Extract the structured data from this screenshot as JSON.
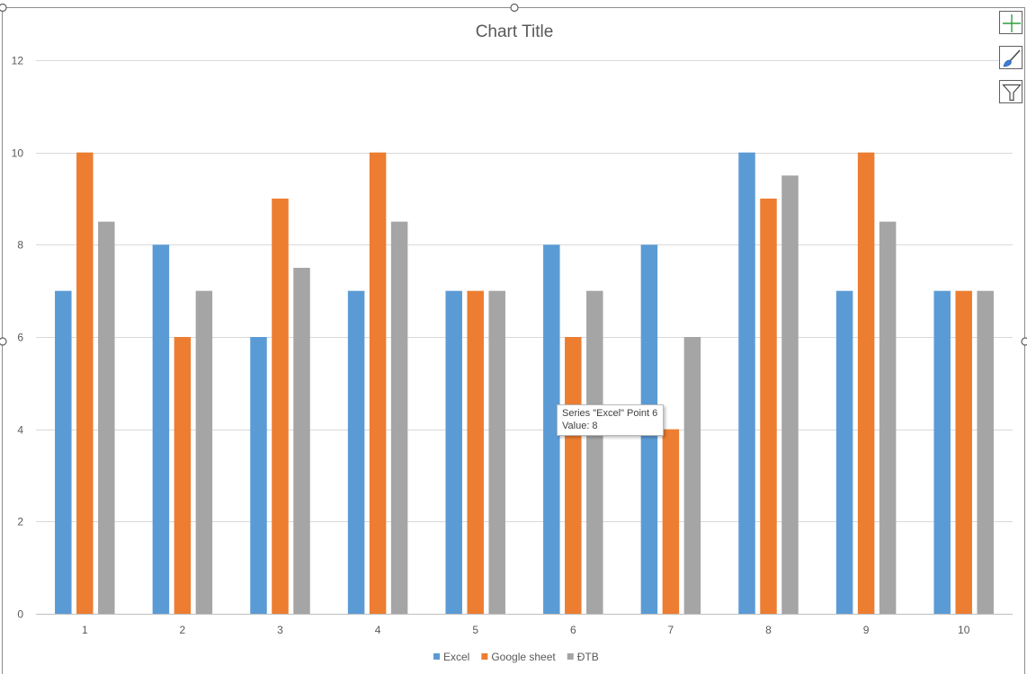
{
  "chart_data": {
    "type": "bar",
    "title": "Chart Title",
    "categories": [
      "1",
      "2",
      "3",
      "4",
      "5",
      "6",
      "7",
      "8",
      "9",
      "10"
    ],
    "series": [
      {
        "name": "Excel",
        "color": "#5b9bd5",
        "values": [
          7,
          8,
          6,
          7,
          7,
          8,
          8,
          10,
          7,
          7
        ]
      },
      {
        "name": "Google sheet",
        "color": "#ed7d31",
        "values": [
          10,
          6,
          9,
          10,
          7,
          6,
          4,
          9,
          10,
          7
        ]
      },
      {
        "name": "ĐTB",
        "color": "#a5a5a5",
        "values": [
          8.5,
          7,
          7.5,
          8.5,
          7,
          7,
          6,
          9.5,
          8.5,
          7
        ]
      }
    ],
    "ylim": [
      0,
      12
    ],
    "yticks": [
      0,
      2,
      4,
      6,
      8,
      10,
      12
    ],
    "grid": true,
    "legend": "bottom"
  },
  "tooltip": {
    "line1": "Series \"Excel\" Point 6",
    "line2": "Value: 8"
  },
  "side_buttons": {
    "elements": "plus-icon",
    "styles": "brush-icon",
    "filters": "filter-icon"
  }
}
